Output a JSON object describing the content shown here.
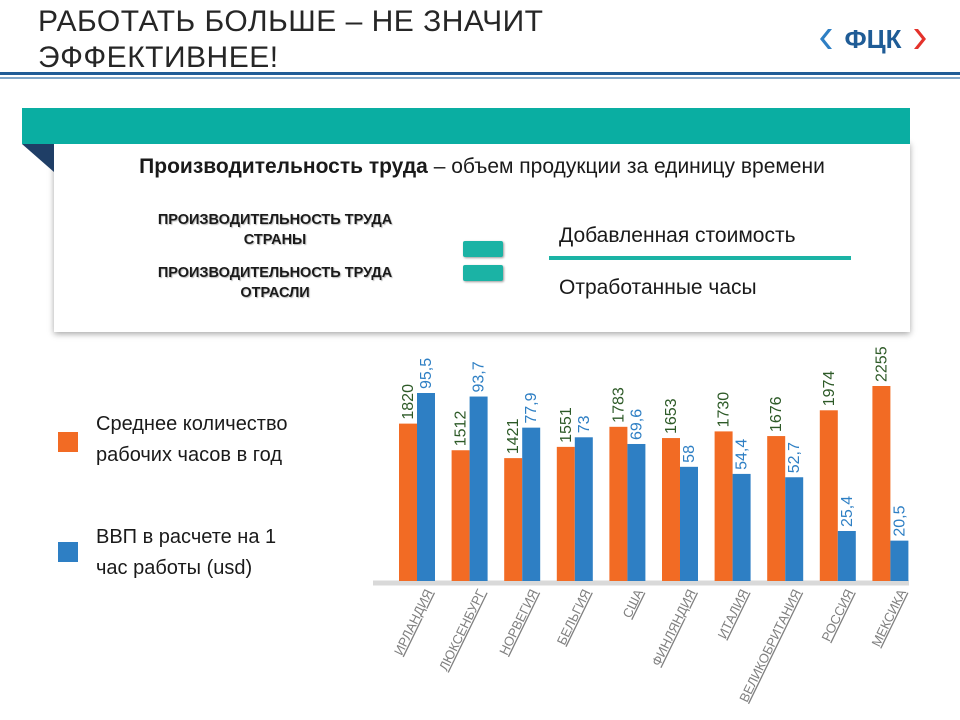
{
  "title_line1": "РАБОТАТЬ БОЛЬШЕ – НЕ ЗНАЧИТ",
  "title_line2": "ЭФФЕКТИВНЕЕ!",
  "logo_text": "ФЦК",
  "definition": {
    "term": "Производительность труда",
    "rest": " – объем продукции за единицу времени"
  },
  "formula": {
    "left_top_1": "ПРОИЗВОДИТЕЛЬНОСТЬ ТРУДА",
    "left_top_2": "СТРАНЫ",
    "left_bot_1": "ПРОИЗВОДИТЕЛЬНОСТЬ ТРУДА",
    "left_bot_2": "ОТРАСЛИ",
    "numerator": "Добавленная стоимость",
    "denominator": "Отработанные часы"
  },
  "legend": {
    "hours_1": "Среднее количество",
    "hours_2": "рабочих часов в год",
    "gdp_1": "ВВП в расчете на 1",
    "gdp_2": "час работы (usd)"
  },
  "colors": {
    "teal": "#0aaea2",
    "orange": "#f26b24",
    "blue": "#2e7fc4",
    "navy": "#1f5c96"
  },
  "chart_data": {
    "type": "bar",
    "categories": [
      "ИРЛАНДИЯ",
      "ЛЮКСЕНБУРГ",
      "НОРВЕГИЯ",
      "БЕЛЬГИЯ",
      "США",
      "ФИНЛЯНДИЯ",
      "ИТАЛИЯ",
      "ВЕЛИКОБРИТАНИЯ",
      "РОССИЯ",
      "МЕКСИКА"
    ],
    "series": [
      {
        "name": "Среднее количество рабочих часов в год",
        "color": "#f26b24",
        "label_color": "#2d5a27",
        "values": [
          1820,
          1512,
          1421,
          1551,
          1783,
          1653,
          1730,
          1676,
          1974,
          2255
        ],
        "labels": [
          "1820",
          "1512",
          "1421",
          "1551",
          "1783",
          "1653",
          "1730",
          "1676",
          "1974",
          "2255"
        ]
      },
      {
        "name": "ВВП в расчете на 1 час работы (usd)",
        "color": "#2e7fc4",
        "label_color": "#2e7fc4",
        "values": [
          95.5,
          93.7,
          77.9,
          73,
          69.6,
          58,
          54.4,
          52.7,
          25.4,
          20.5
        ],
        "labels": [
          "95,5",
          "93,7",
          "77,9",
          "73",
          "69,6",
          "58",
          "54,4",
          "52,7",
          "25,4",
          "20,5"
        ]
      }
    ],
    "grid": false,
    "legend": "left"
  }
}
